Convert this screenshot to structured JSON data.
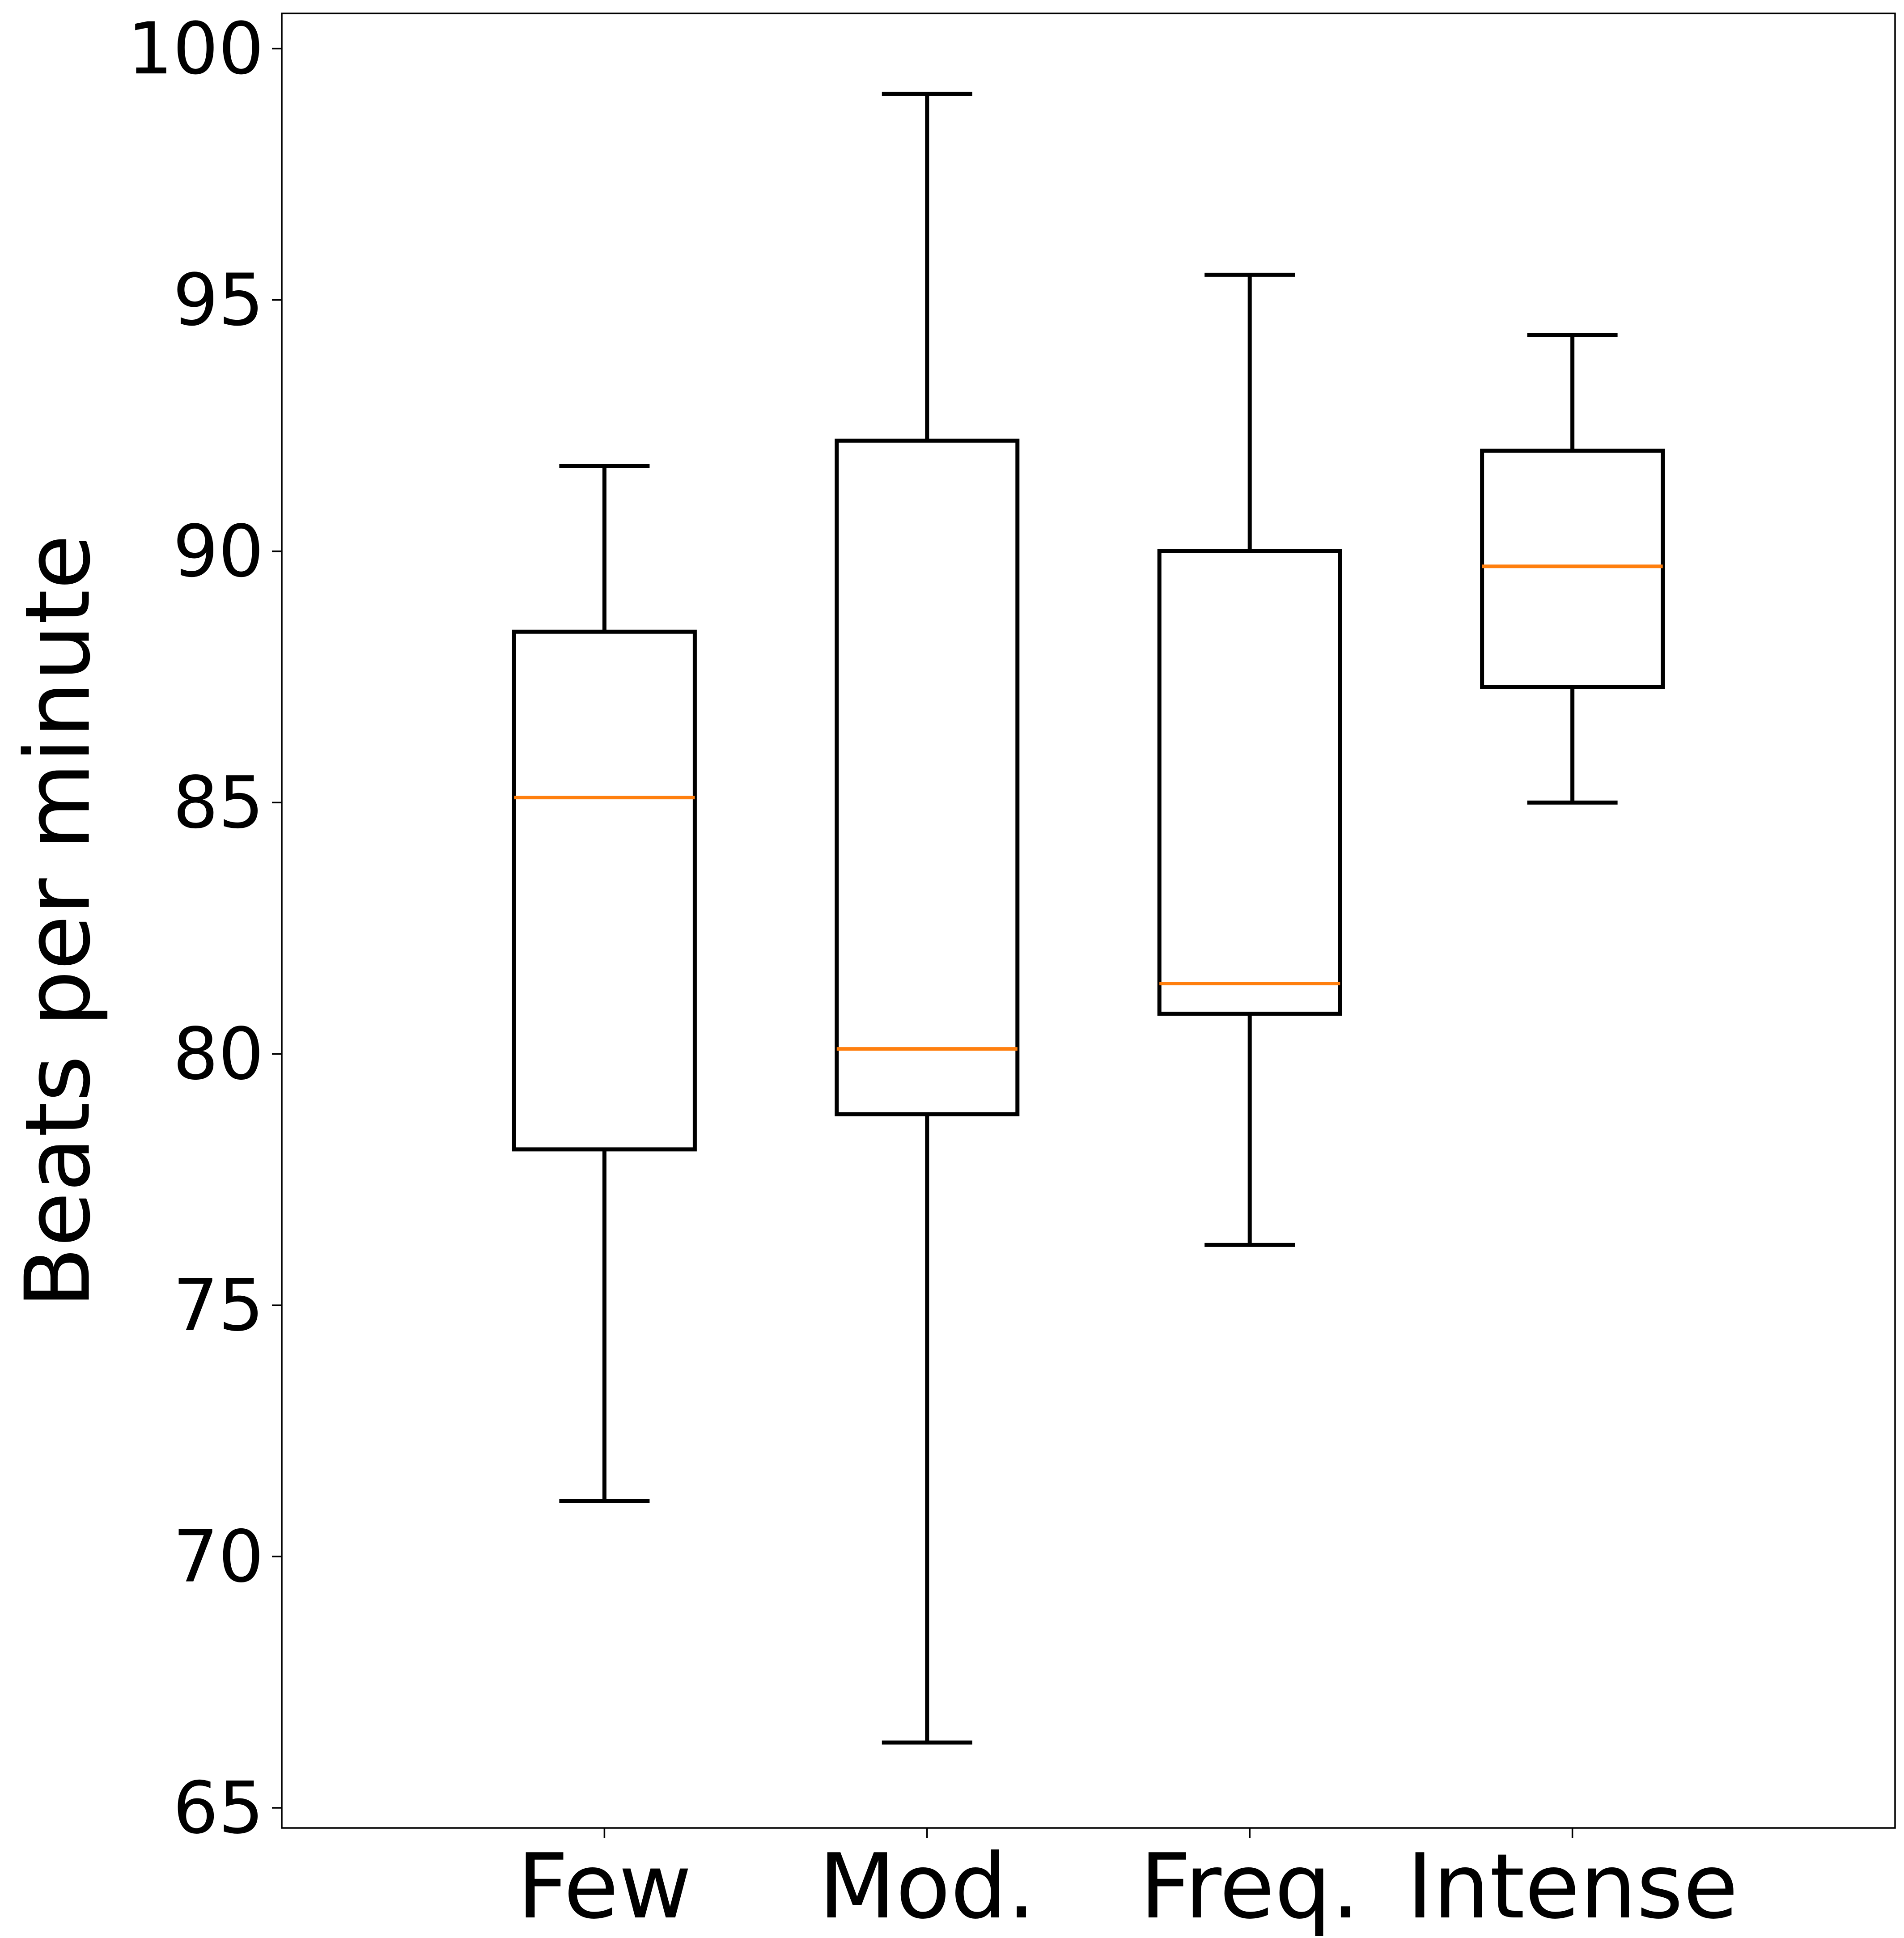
{
  "chart_data": {
    "type": "boxplot",
    "title": "",
    "xlabel": "",
    "ylabel": "Beats per minute",
    "ylim": [
      64.6,
      100.7
    ],
    "yticks": [
      65,
      70,
      75,
      80,
      85,
      90,
      95,
      100
    ],
    "ytick_labels": [
      "65",
      "70",
      "75",
      "80",
      "85",
      "90",
      "95",
      "100"
    ],
    "categories": [
      "Few",
      "Mod.",
      "Freq.",
      "Intense"
    ],
    "boxes": [
      {
        "label": "Few",
        "whisker_low": 71.1,
        "q1": 78.1,
        "median": 85.1,
        "q3": 88.4,
        "whisker_high": 91.7
      },
      {
        "label": "Mod.",
        "whisker_low": 66.3,
        "q1": 78.8,
        "median": 80.1,
        "q3": 92.2,
        "whisker_high": 99.1
      },
      {
        "label": "Freq.",
        "whisker_low": 76.2,
        "q1": 80.8,
        "median": 81.4,
        "q3": 90.0,
        "whisker_high": 95.5
      },
      {
        "label": "Intense",
        "whisker_low": 85.0,
        "q1": 87.3,
        "median": 89.7,
        "q3": 92.0,
        "whisker_high": 94.3
      }
    ],
    "grid": false,
    "colors": {
      "box": "#000000",
      "median": "#ff7f0e",
      "axes": "#000000",
      "background": "#ffffff"
    }
  }
}
